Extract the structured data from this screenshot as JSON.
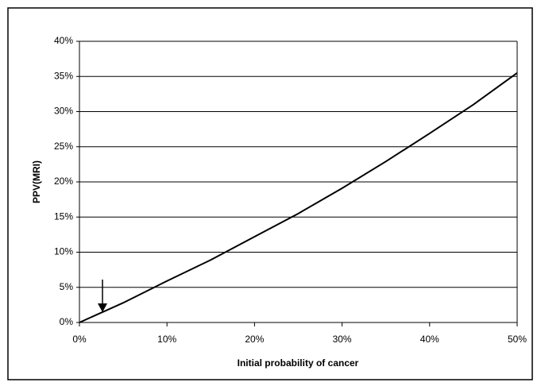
{
  "chart_data": {
    "type": "line",
    "x_label": "Initial probability of cancer",
    "y_label": "PPV(MRI)",
    "x": [
      0,
      5,
      10,
      15,
      20,
      25,
      30,
      35,
      40,
      45,
      50
    ],
    "series": [
      {
        "color": "#000000",
        "values": [
          0,
          2.8,
          5.9,
          8.9,
          12.2,
          15.5,
          19.1,
          22.9,
          26.9,
          31.0,
          35.5
        ]
      }
    ],
    "xlim": [
      0,
      50
    ],
    "xticks": [
      {
        "value": 0,
        "label": "0%"
      },
      {
        "value": 10,
        "label": "10%"
      },
      {
        "value": 20,
        "label": "20%"
      },
      {
        "value": 30,
        "label": "30%"
      },
      {
        "value": 40,
        "label": "40%"
      },
      {
        "value": 50,
        "label": "50%"
      }
    ],
    "ylim": [
      0,
      40
    ],
    "yticks": [
      {
        "value": 0,
        "label": "0%"
      },
      {
        "value": 5,
        "label": "5%"
      },
      {
        "value": 10,
        "label": "10%"
      },
      {
        "value": 15,
        "label": "15%"
      },
      {
        "value": 20,
        "label": "20%"
      },
      {
        "value": 25,
        "label": "25%"
      },
      {
        "value": 30,
        "label": "30%"
      },
      {
        "value": 35,
        "label": "35%"
      },
      {
        "value": 40,
        "label": "40%"
      }
    ],
    "grid": true
  }
}
